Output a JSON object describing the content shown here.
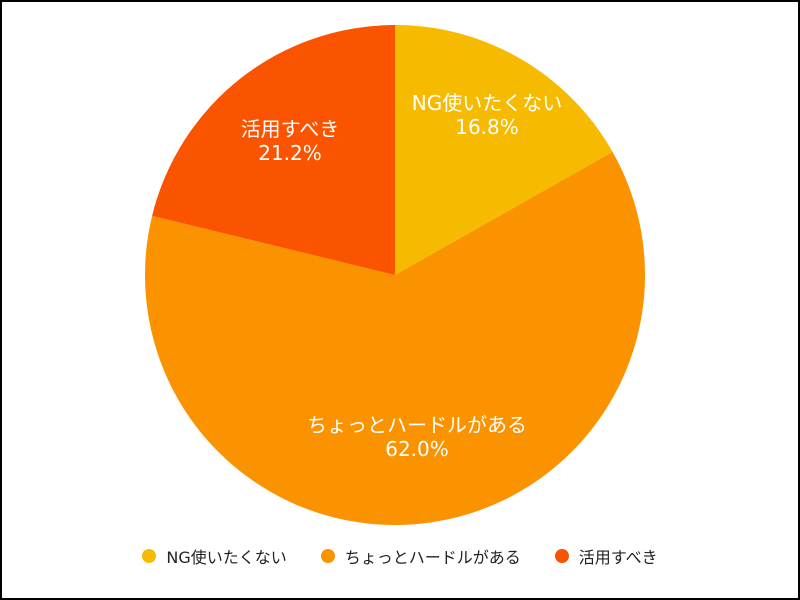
{
  "chart_data": {
    "type": "pie",
    "title": "",
    "start_angle_deg": 0,
    "direction": "clockwise",
    "legend_position": "bottom",
    "slices": [
      {
        "label": "NG使いたくない",
        "value": 16.8,
        "value_label": "16.8%",
        "color": "#F6BB00"
      },
      {
        "label": "ちょっとハードルがある",
        "value": 62.0,
        "value_label": "62.0%",
        "color": "#FB9300"
      },
      {
        "label": "活用すべき",
        "value": 21.2,
        "value_label": "21.2%",
        "color": "#FB5400"
      }
    ]
  },
  "legend": {
    "items": [
      {
        "label": "NG使いたくない",
        "color": "#F6BB00"
      },
      {
        "label": "ちょっとハードルがある",
        "color": "#FB9300"
      },
      {
        "label": "活用すべき",
        "color": "#FB5400"
      }
    ]
  }
}
